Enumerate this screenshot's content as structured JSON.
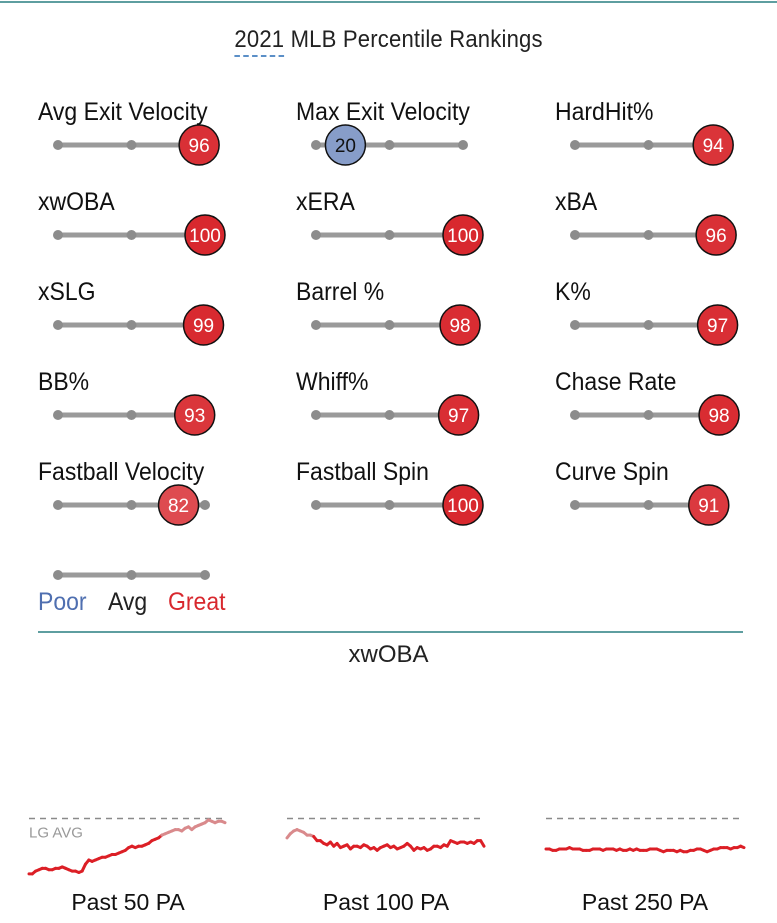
{
  "header": {
    "title_year": "2021",
    "title_rest": " MLB Percentile Rankings"
  },
  "colors": {
    "poor": "#4f6fb0",
    "avg": "#222222",
    "great": "#d8282e",
    "track": "#9a9a9a",
    "rule": "#5e9ea0"
  },
  "chart_data": [
    {
      "type": "percentile-sliders",
      "title": "2021 MLB Percentile Rankings",
      "metrics": [
        {
          "label": "Avg Exit Velocity",
          "percentile": 96
        },
        {
          "label": "Max Exit Velocity",
          "percentile": 20
        },
        {
          "label": "HardHit%",
          "percentile": 94
        },
        {
          "label": "xwOBA",
          "percentile": 100
        },
        {
          "label": "xERA",
          "percentile": 100
        },
        {
          "label": "xBA",
          "percentile": 96
        },
        {
          "label": "xSLG",
          "percentile": 99
        },
        {
          "label": "Barrel %",
          "percentile": 98
        },
        {
          "label": "K%",
          "percentile": 97
        },
        {
          "label": "BB%",
          "percentile": 93
        },
        {
          "label": "Whiff%",
          "percentile": 97
        },
        {
          "label": "Chase Rate",
          "percentile": 98
        },
        {
          "label": "Fastball Velocity",
          "percentile": 82
        },
        {
          "label": "Fastball Spin",
          "percentile": 100
        },
        {
          "label": "Curve Spin",
          "percentile": 91
        }
      ],
      "legend": [
        "Poor",
        "Avg",
        "Great"
      ]
    },
    {
      "type": "line",
      "title": "xwOBA",
      "reference_label": "LG AVG",
      "series": [
        {
          "label": "Past 50 PA",
          "values": [
            0.18,
            0.18,
            0.2,
            0.21,
            0.22,
            0.22,
            0.21,
            0.21,
            0.22,
            0.22,
            0.23,
            0.22,
            0.21,
            0.2,
            0.2,
            0.19,
            0.2,
            0.25,
            0.28,
            0.27,
            0.28,
            0.29,
            0.3,
            0.3,
            0.31,
            0.32,
            0.32,
            0.33,
            0.34,
            0.35,
            0.37,
            0.38,
            0.37,
            0.38,
            0.38,
            0.39,
            0.4,
            0.42,
            0.43,
            0.44,
            0.46,
            0.47,
            0.48,
            0.49,
            0.5,
            0.5,
            0.49,
            0.51,
            0.52,
            0.5,
            0.52,
            0.53,
            0.54,
            0.55,
            0.57,
            0.56,
            0.55,
            0.56,
            0.56,
            0.55
          ]
        },
        {
          "label": "Past 100 PA",
          "values": [
            0.44,
            0.47,
            0.49,
            0.5,
            0.49,
            0.48,
            0.46,
            0.46,
            0.45,
            0.42,
            0.42,
            0.4,
            0.39,
            0.41,
            0.38,
            0.4,
            0.37,
            0.38,
            0.39,
            0.36,
            0.38,
            0.38,
            0.37,
            0.39,
            0.38,
            0.36,
            0.37,
            0.35,
            0.37,
            0.38,
            0.39,
            0.37,
            0.38,
            0.36,
            0.37,
            0.38,
            0.4,
            0.38,
            0.35,
            0.37,
            0.36,
            0.37,
            0.35,
            0.36,
            0.38,
            0.38,
            0.37,
            0.39,
            0.38,
            0.42,
            0.41,
            0.4,
            0.41,
            0.41,
            0.4,
            0.41,
            0.4,
            0.42,
            0.42,
            0.38
          ]
        },
        {
          "label": "Past 250 PA",
          "values": [
            0.36,
            0.36,
            0.35,
            0.35,
            0.36,
            0.36,
            0.36,
            0.37,
            0.36,
            0.36,
            0.36,
            0.35,
            0.35,
            0.35,
            0.36,
            0.36,
            0.36,
            0.35,
            0.36,
            0.36,
            0.36,
            0.35,
            0.36,
            0.35,
            0.35,
            0.36,
            0.35,
            0.36,
            0.35,
            0.35,
            0.35,
            0.36,
            0.36,
            0.36,
            0.35,
            0.34,
            0.35,
            0.35,
            0.35,
            0.34,
            0.35,
            0.34,
            0.34,
            0.35,
            0.35,
            0.36,
            0.36,
            0.35,
            0.34,
            0.35,
            0.36,
            0.36,
            0.37,
            0.37,
            0.37,
            0.36,
            0.37,
            0.37,
            0.38,
            0.37
          ]
        }
      ]
    }
  ]
}
